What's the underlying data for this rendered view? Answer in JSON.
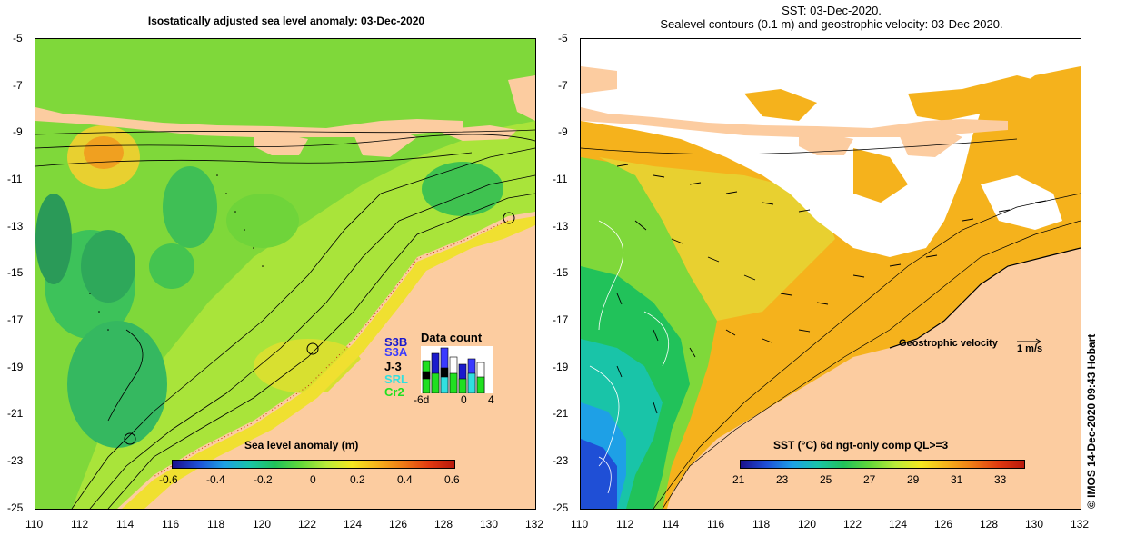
{
  "left_panel": {
    "title": "Isostatically adjusted sea level anomaly: 03-Dec-2020",
    "colorbar": {
      "label": "Sea level anomaly (m)",
      "ticks": [
        "-0.6",
        "-0.4",
        "-0.2",
        "0",
        "0.2",
        "0.4",
        "0.6"
      ],
      "colors": [
        "#1a0f8c",
        "#1f4fd6",
        "#1ea0e6",
        "#19c4a8",
        "#21c25a",
        "#63d83a",
        "#b9ea3a",
        "#f5e820",
        "#f5b21c",
        "#ef7a16",
        "#e03a10",
        "#b8180c"
      ]
    },
    "data_count": {
      "title": "Data count",
      "satellites": [
        "S3B",
        "S3A",
        "J-3",
        "SRL",
        "Cr2"
      ],
      "satellite_colors": [
        "#1a1acc",
        "#3a3aff",
        "#000000",
        "#30e0e0",
        "#20e020"
      ],
      "axis_ticks": [
        "-6d",
        "0",
        "4"
      ]
    }
  },
  "right_panel": {
    "title_line1": "SST: 03-Dec-2020.",
    "title_line2": "Sealevel contours (0.1 m) and geostrophic velocity: 03-Dec-2020.",
    "colorbar": {
      "label": "SST (°C) 6d ngt-only comp QL>=3",
      "ticks": [
        "21",
        "23",
        "25",
        "27",
        "29",
        "31",
        "33"
      ],
      "colors": [
        "#1a0f8c",
        "#1f4fd6",
        "#1ea0e6",
        "#19c4a8",
        "#21c25a",
        "#63d83a",
        "#b9ea3a",
        "#f5e820",
        "#f5b21c",
        "#ef7a16",
        "#e03a10",
        "#b8180c"
      ]
    },
    "geostrophic_label": "Geostrophic velocity",
    "velocity_scale": "1 m/s"
  },
  "axes": {
    "lat_ticks": [
      "-5",
      "-7",
      "-9",
      "-11",
      "-13",
      "-15",
      "-17",
      "-19",
      "-21",
      "-23",
      "-25"
    ],
    "lon_ticks": [
      "110",
      "112",
      "114",
      "116",
      "118",
      "120",
      "122",
      "124",
      "126",
      "128",
      "130",
      "132"
    ]
  },
  "credit": "© IMOS 14-Dec-2020 09:43 Hobart"
}
